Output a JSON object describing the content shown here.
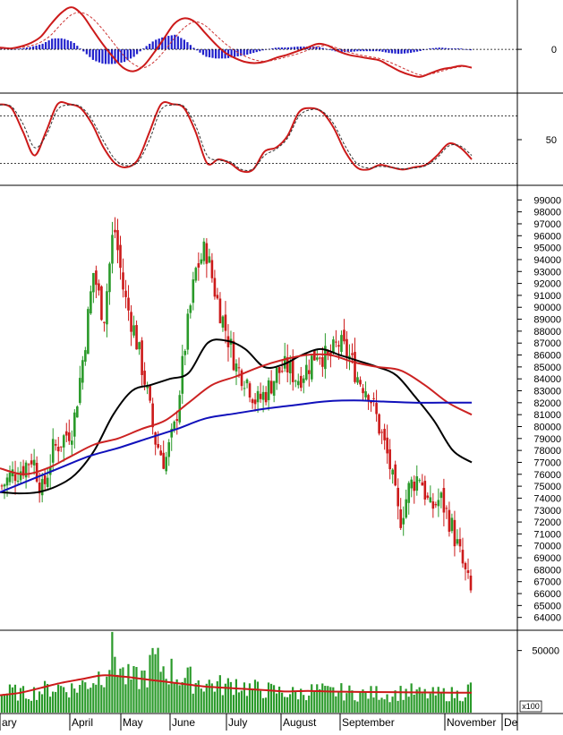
{
  "colors": {
    "up": "#2a9a2a",
    "down": "#cc1a1a",
    "ma_black": "#000000",
    "ma_red": "#cc2222",
    "ma_blue": "#1010bb",
    "macd_line": "#cc1a1a",
    "histogram": "#2020cc",
    "volume_bar": "#2a9a2a",
    "volume_ma": "#cc1a1a",
    "grid_dots": "#000000"
  },
  "x_axis": {
    "labels": [
      "ary",
      "April",
      "May",
      "June",
      "July",
      "August",
      "September",
      "November",
      "De"
    ]
  },
  "chart_data": [
    {
      "type": "line",
      "panel": "MACD",
      "y_ticks": [
        "0"
      ],
      "zero_line": true,
      "series": [
        {
          "role": "macd",
          "values": [
            2,
            1,
            3,
            7,
            14,
            28,
            40,
            46,
            38,
            22,
            6,
            -8,
            -20,
            -24,
            -18,
            -4,
            12,
            28,
            34,
            30,
            18,
            6,
            -4,
            -10,
            -14,
            -15,
            -13,
            -9,
            -6,
            -2,
            2,
            6,
            4,
            -2,
            -6,
            -8,
            -10,
            -12,
            -18,
            -24,
            -28,
            -30,
            -26,
            -22,
            -20,
            -18,
            -20
          ]
        },
        {
          "role": "signal",
          "values": [
            1,
            1,
            2,
            4,
            8,
            16,
            28,
            38,
            40,
            34,
            22,
            8,
            -6,
            -16,
            -20,
            -14,
            -2,
            12,
            24,
            30,
            26,
            16,
            6,
            -2,
            -8,
            -12,
            -13,
            -11,
            -8,
            -5,
            -1,
            3,
            4,
            1,
            -3,
            -6,
            -8,
            -10,
            -14,
            -19,
            -24,
            -28,
            -27,
            -24,
            -21,
            -19,
            -19
          ]
        },
        {
          "role": "histogram",
          "values": [
            1,
            0,
            1,
            3,
            6,
            12,
            12,
            8,
            -2,
            -12,
            -16,
            -16,
            -14,
            -8,
            2,
            10,
            14,
            16,
            10,
            0,
            -8,
            -10,
            -10,
            -8,
            -6,
            -3,
            0,
            2,
            2,
            3,
            3,
            3,
            0,
            -3,
            -3,
            -2,
            -2,
            -2,
            -4,
            -5,
            -4,
            -2,
            1,
            2,
            1,
            1,
            -1
          ]
        }
      ]
    },
    {
      "type": "line",
      "panel": "Stochastic",
      "y_ticks": [
        "50"
      ],
      "ylim": [
        0,
        100
      ],
      "reference_lines": [
        80,
        20
      ],
      "series": [
        {
          "role": "k",
          "values": [
            95,
            90,
            60,
            30,
            60,
            95,
            95,
            90,
            70,
            40,
            20,
            15,
            25,
            60,
            95,
            95,
            90,
            60,
            20,
            25,
            20,
            10,
            12,
            35,
            40,
            55,
            85,
            90,
            85,
            65,
            35,
            15,
            12,
            18,
            15,
            12,
            15,
            18,
            30,
            45,
            40,
            25
          ]
        },
        {
          "role": "d",
          "values": [
            94,
            92,
            70,
            40,
            55,
            88,
            94,
            92,
            75,
            48,
            25,
            17,
            22,
            50,
            88,
            94,
            92,
            68,
            30,
            24,
            22,
            12,
            13,
            30,
            38,
            52,
            80,
            88,
            86,
            70,
            42,
            20,
            14,
            16,
            15,
            13,
            14,
            17,
            27,
            42,
            42,
            30
          ]
        }
      ]
    },
    {
      "type": "candlestick",
      "panel": "Price",
      "ylim": [
        63000,
        100000
      ],
      "y_ticks": [
        "99000",
        "98000",
        "97000",
        "96000",
        "95000",
        "94000",
        "93000",
        "92000",
        "91000",
        "90000",
        "89000",
        "88000",
        "87000",
        "86000",
        "85000",
        "84000",
        "83000",
        "82000",
        "81000",
        "80000",
        "79000",
        "78000",
        "77000",
        "76000",
        "75000",
        "74000",
        "73000",
        "72000",
        "71000",
        "70000",
        "69000",
        "68000",
        "67000",
        "66000",
        "65000",
        "64000"
      ],
      "closes": [
        75000,
        76000,
        76500,
        77500,
        74500,
        78000,
        79000,
        80000,
        86000,
        93000,
        89000,
        97000,
        91000,
        88000,
        84000,
        79000,
        77000,
        80000,
        87000,
        93000,
        95000,
        91000,
        88000,
        85000,
        84000,
        82000,
        83000,
        84500,
        85000,
        84000,
        85000,
        86500,
        85500,
        87000,
        86000,
        84000,
        83000,
        80000,
        77000,
        72000,
        75000,
        76000,
        73000,
        74000,
        72000,
        69000,
        66000
      ],
      "moving_averages": [
        {
          "color": "ma_black",
          "values": [
            74500,
            74400,
            74500,
            75000,
            76000,
            78000,
            81000,
            83000,
            83500,
            84000,
            84500,
            87000,
            87200,
            86500,
            85000,
            85200,
            86000,
            86500,
            86000,
            85500,
            85000,
            84300,
            82500,
            80500,
            78000,
            77000
          ]
        },
        {
          "color": "ma_red",
          "values": [
            76500,
            76000,
            76500,
            77500,
            78500,
            79000,
            79800,
            80500,
            82000,
            83500,
            84200,
            85000,
            85600,
            86000,
            86000,
            85400,
            85000,
            84700,
            83500,
            82000,
            81000
          ]
        },
        {
          "color": "ma_blue",
          "values": [
            74500,
            75500,
            76500,
            77500,
            78200,
            79000,
            79800,
            80700,
            81100,
            81500,
            81800,
            82100,
            82200,
            82100,
            82000,
            82000,
            82000
          ]
        }
      ]
    },
    {
      "type": "bar",
      "panel": "Volume",
      "y_ticks": [
        "50000"
      ],
      "unit_label": "x100",
      "values": [
        15000,
        18000,
        16000,
        17000,
        19000,
        21000,
        22000,
        20000,
        24000,
        28000,
        35000,
        52000,
        30000,
        28000,
        31000,
        42000,
        38000,
        33000,
        29000,
        27000,
        25000,
        24000,
        22000,
        26000,
        21000,
        20000,
        19000,
        18000,
        17000,
        16000,
        18000,
        19000,
        17000,
        18000,
        17000,
        16000,
        16000,
        17000,
        15000,
        17000,
        18000,
        16000,
        15000,
        16000,
        16000,
        15000,
        21000
      ],
      "moving_average": [
        14000,
        16000,
        20000,
        24000,
        27000,
        30000,
        29000,
        27000,
        25000,
        23000,
        21000,
        20000,
        19000,
        18000,
        17000,
        17500,
        17000,
        16800,
        16600,
        16500,
        16300,
        16200,
        16100,
        16000
      ]
    }
  ]
}
